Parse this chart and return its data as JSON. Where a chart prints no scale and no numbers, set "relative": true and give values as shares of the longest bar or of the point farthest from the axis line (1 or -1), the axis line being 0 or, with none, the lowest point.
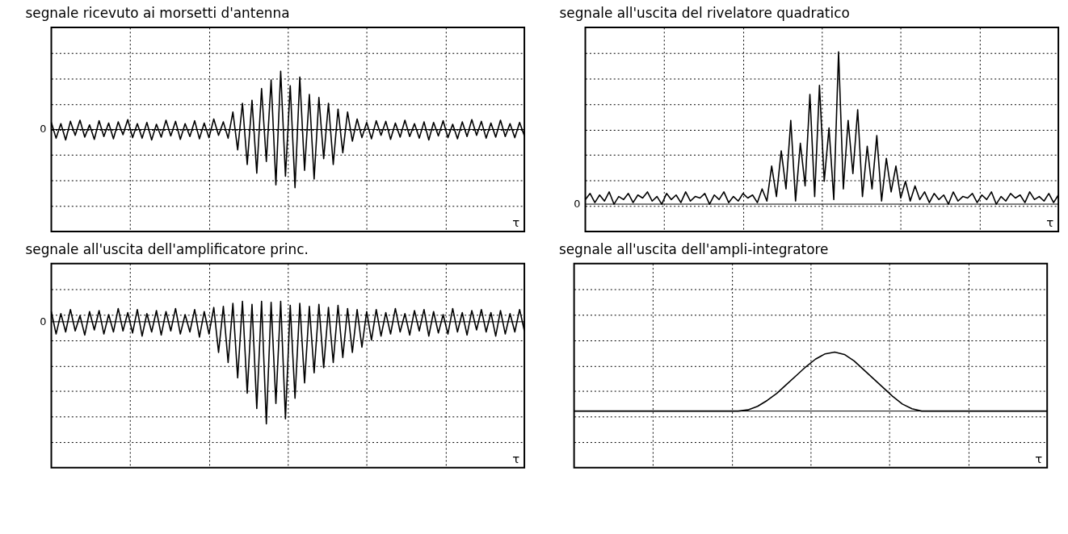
{
  "chart_data": [
    {
      "type": "line",
      "title": "segnale ricevuto ai morsetti d'antenna",
      "xlabel": "τ",
      "relative": true,
      "grid": true,
      "color": "#000000",
      "annotations": [
        "0"
      ],
      "categories": [
        null,
        null,
        null,
        null,
        null,
        null,
        null,
        null,
        null,
        null,
        null,
        null,
        null,
        null,
        null,
        null,
        null,
        null,
        null,
        null,
        null,
        null,
        null,
        null,
        null,
        null,
        null,
        null,
        null,
        null,
        null,
        null,
        null,
        null,
        null,
        null,
        null,
        null,
        null,
        null,
        null,
        null,
        null,
        null,
        null,
        null,
        null,
        null,
        null,
        null,
        null,
        null,
        null,
        null,
        null,
        null,
        null,
        null,
        null,
        null,
        null,
        null,
        null,
        null,
        null,
        null,
        null,
        null,
        null,
        null,
        null,
        null,
        null,
        null,
        null,
        null,
        null,
        null,
        null,
        null,
        null,
        null,
        null,
        null,
        null,
        null,
        null,
        null,
        null,
        null,
        null,
        null,
        null,
        null,
        null,
        null,
        null,
        null,
        null,
        null
      ],
      "values": [
        0.12,
        -0.15,
        0.1,
        -0.18,
        0.14,
        -0.1,
        0.16,
        -0.13,
        0.08,
        -0.17,
        0.15,
        -0.12,
        0.11,
        -0.16,
        0.13,
        -0.09,
        0.17,
        -0.14,
        0.1,
        -0.15,
        0.12,
        -0.18,
        0.09,
        -0.13,
        0.16,
        -0.11,
        0.14,
        -0.17,
        0.1,
        -0.12,
        0.15,
        -0.16,
        0.11,
        -0.14,
        0.18,
        -0.1,
        0.13,
        -0.15,
        0.3,
        -0.35,
        0.45,
        -0.6,
        0.5,
        -0.75,
        0.7,
        -0.55,
        0.85,
        -0.95,
        1.0,
        -0.8,
        0.75,
        -1.0,
        0.9,
        -0.7,
        0.6,
        -0.85,
        0.55,
        -0.5,
        0.45,
        -0.6,
        0.35,
        -0.4,
        0.3,
        -0.2,
        0.18,
        -0.14,
        0.12,
        -0.16,
        0.15,
        -0.1,
        0.14,
        -0.17,
        0.11,
        -0.13,
        0.16,
        -0.12,
        0.1,
        -0.15,
        0.13,
        -0.18,
        0.12,
        -0.11,
        0.15,
        -0.14,
        0.09,
        -0.16,
        0.13,
        -0.12,
        0.17,
        -0.1,
        0.14,
        -0.15,
        0.11,
        -0.13,
        0.16,
        -0.12,
        0.1,
        -0.14,
        0.12,
        -0.11
      ]
    },
    {
      "type": "line",
      "title": "segnale all'uscita del rivelatore quadratico",
      "xlabel": "τ",
      "relative": true,
      "grid": true,
      "color": "#000000",
      "annotations": [
        "0"
      ],
      "categories": [
        null,
        null,
        null,
        null,
        null,
        null,
        null,
        null,
        null,
        null,
        null,
        null,
        null,
        null,
        null,
        null,
        null,
        null,
        null,
        null,
        null,
        null,
        null,
        null,
        null,
        null,
        null,
        null,
        null,
        null,
        null,
        null,
        null,
        null,
        null,
        null,
        null,
        null,
        null,
        null,
        null,
        null,
        null,
        null,
        null,
        null,
        null,
        null,
        null,
        null,
        null,
        null,
        null,
        null,
        null,
        null,
        null,
        null,
        null,
        null,
        null,
        null,
        null,
        null,
        null,
        null,
        null,
        null,
        null,
        null,
        null,
        null,
        null,
        null,
        null,
        null,
        null,
        null,
        null,
        null,
        null,
        null,
        null,
        null,
        null,
        null,
        null,
        null,
        null,
        null,
        null,
        null,
        null,
        null,
        null,
        null,
        null,
        null,
        null,
        null
      ],
      "values": [
        0.03,
        0.07,
        0.01,
        0.06,
        0.02,
        0.08,
        0.0,
        0.05,
        0.03,
        0.07,
        0.01,
        0.06,
        0.04,
        0.08,
        0.02,
        0.05,
        0.0,
        0.07,
        0.03,
        0.06,
        0.01,
        0.08,
        0.02,
        0.05,
        0.04,
        0.07,
        0.0,
        0.06,
        0.03,
        0.08,
        0.01,
        0.05,
        0.02,
        0.07,
        0.04,
        0.06,
        0.01,
        0.1,
        0.02,
        0.25,
        0.05,
        0.35,
        0.1,
        0.55,
        0.02,
        0.4,
        0.12,
        0.72,
        0.05,
        0.78,
        0.15,
        0.5,
        0.03,
        1.0,
        0.1,
        0.55,
        0.2,
        0.62,
        0.05,
        0.38,
        0.1,
        0.45,
        0.02,
        0.3,
        0.08,
        0.25,
        0.04,
        0.15,
        0.02,
        0.12,
        0.03,
        0.08,
        0.01,
        0.07,
        0.03,
        0.06,
        0.0,
        0.08,
        0.02,
        0.05,
        0.04,
        0.07,
        0.01,
        0.06,
        0.03,
        0.08,
        0.0,
        0.05,
        0.02,
        0.07,
        0.04,
        0.06,
        0.01,
        0.08,
        0.03,
        0.05,
        0.02,
        0.07,
        0.01,
        0.06
      ]
    },
    {
      "type": "line",
      "title": "segnale all'uscita dell'amplificatore princ.",
      "xlabel": "τ",
      "relative": true,
      "grid": true,
      "color": "#000000",
      "annotations": [
        "0"
      ],
      "categories": [
        null,
        null,
        null,
        null,
        null,
        null,
        null,
        null,
        null,
        null,
        null,
        null,
        null,
        null,
        null,
        null,
        null,
        null,
        null,
        null,
        null,
        null,
        null,
        null,
        null,
        null,
        null,
        null,
        null,
        null,
        null,
        null,
        null,
        null,
        null,
        null,
        null,
        null,
        null,
        null,
        null,
        null,
        null,
        null,
        null,
        null,
        null,
        null,
        null,
        null,
        null,
        null,
        null,
        null,
        null,
        null,
        null,
        null,
        null,
        null,
        null,
        null,
        null,
        null,
        null,
        null,
        null,
        null,
        null,
        null,
        null,
        null,
        null,
        null,
        null,
        null,
        null,
        null,
        null,
        null,
        null,
        null,
        null,
        null,
        null,
        null,
        null,
        null,
        null,
        null,
        null,
        null,
        null,
        null,
        null,
        null,
        null,
        null,
        null,
        null
      ],
      "values": [
        0.1,
        -0.12,
        0.08,
        -0.1,
        0.12,
        -0.09,
        0.06,
        -0.13,
        0.1,
        -0.08,
        0.11,
        -0.12,
        0.07,
        -0.1,
        0.13,
        -0.09,
        0.09,
        -0.11,
        0.12,
        -0.14,
        0.08,
        -0.1,
        0.11,
        -0.13,
        0.1,
        -0.09,
        0.13,
        -0.12,
        0.07,
        -0.1,
        0.12,
        -0.15,
        0.1,
        -0.12,
        0.14,
        -0.3,
        0.15,
        -0.4,
        0.18,
        -0.55,
        0.2,
        -0.7,
        0.17,
        -0.85,
        0.2,
        -1.0,
        0.19,
        -0.8,
        0.2,
        -0.95,
        0.16,
        -0.75,
        0.18,
        -0.6,
        0.15,
        -0.5,
        0.17,
        -0.45,
        0.14,
        -0.4,
        0.16,
        -0.35,
        0.13,
        -0.3,
        0.12,
        -0.25,
        0.1,
        -0.18,
        0.12,
        -0.14,
        0.09,
        -0.12,
        0.13,
        -0.1,
        0.08,
        -0.13,
        0.11,
        -0.09,
        0.12,
        -0.14,
        0.1,
        -0.11,
        0.07,
        -0.12,
        0.13,
        -0.1,
        0.09,
        -0.13,
        0.11,
        -0.08,
        0.12,
        -0.1,
        0.09,
        -0.14,
        0.11,
        -0.12,
        0.08,
        -0.1,
        0.12,
        -0.09
      ]
    },
    {
      "type": "line",
      "title": "segnale all'uscita dell'ampli-integratore",
      "xlabel": "τ",
      "relative": true,
      "grid": true,
      "color": "#000000",
      "categories": [
        null,
        null,
        null,
        null,
        null,
        null,
        null,
        null,
        null,
        null,
        null,
        null,
        null,
        null,
        null,
        null,
        null,
        null,
        null,
        null,
        null,
        null,
        null,
        null,
        null,
        null,
        null,
        null,
        null,
        null,
        null,
        null,
        null,
        null,
        null,
        null,
        null,
        null,
        null,
        null,
        null,
        null,
        null,
        null,
        null,
        null,
        null,
        null,
        null,
        null
      ],
      "values": [
        0,
        0,
        0,
        0,
        0,
        0,
        0,
        0,
        0,
        0,
        0,
        0,
        0,
        0,
        0,
        0,
        0,
        0,
        0.02,
        0.08,
        0.18,
        0.3,
        0.45,
        0.6,
        0.75,
        0.88,
        0.97,
        1.0,
        0.96,
        0.85,
        0.7,
        0.55,
        0.4,
        0.25,
        0.12,
        0.04,
        0,
        0,
        0,
        0,
        0,
        0,
        0,
        0,
        0,
        0,
        0,
        0,
        0,
        0
      ]
    }
  ]
}
